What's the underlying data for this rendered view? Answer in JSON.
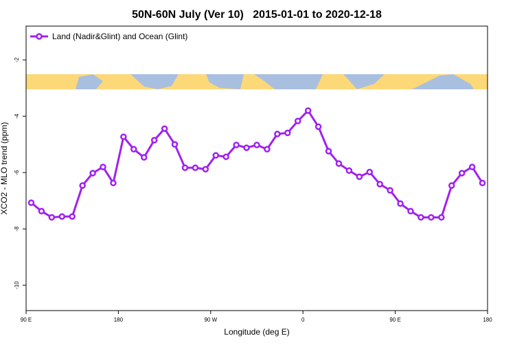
{
  "chart_data": {
    "type": "line",
    "title": "50N-60N July (Ver 10)   2015-01-01 to 2020-12-18",
    "x_label": "Longitude (deg E)",
    "y_label": "XCO2 - MLO trend (ppm)",
    "x": [
      95,
      105,
      115,
      125,
      135,
      145,
      155,
      165,
      175,
      185,
      195,
      205,
      215,
      225,
      235,
      245,
      255,
      265,
      275,
      285,
      295,
      305,
      315,
      325,
      335,
      345,
      355,
      365,
      375,
      385,
      395,
      405,
      415,
      425,
      435,
      445,
      455,
      465,
      475,
      485,
      495,
      505,
      515,
      525,
      535
    ],
    "series": [
      {
        "name": "Land (Nadir&Glint) and Ocean (Glint)",
        "color": "#a020f0",
        "values": [
          -7.07,
          -7.37,
          -7.59,
          -7.56,
          -7.56,
          -6.46,
          -6.02,
          -5.8,
          -6.37,
          -4.73,
          -5.17,
          -5.46,
          -4.85,
          -4.44,
          -5.0,
          -5.83,
          -5.83,
          -5.88,
          -5.39,
          -5.44,
          -5.02,
          -5.12,
          -5.02,
          -5.17,
          -4.63,
          -4.59,
          -4.17,
          -3.8,
          -4.37,
          -5.24,
          -5.68,
          -5.93,
          -6.15,
          -5.98,
          -6.41,
          -6.63,
          -7.1,
          -7.37,
          -7.59,
          -7.59,
          -7.59,
          -6.46,
          -6.02,
          -5.8,
          -6.37
        ]
      }
    ],
    "xlim": [
      90,
      540
    ],
    "xticks": [
      {
        "value": 90,
        "label": "90 E"
      },
      180,
      {
        "value": 270,
        "label": "90 W"
      },
      {
        "value": 360,
        "label": "0"
      },
      {
        "value": 450,
        "label": "90 E"
      },
      {
        "value": 540,
        "label": "180"
      }
    ],
    "ylim": [
      -10.9,
      -0.8
    ],
    "yticks": [
      -10,
      -8,
      -6,
      -4,
      -2
    ],
    "legend": "top-left"
  }
}
